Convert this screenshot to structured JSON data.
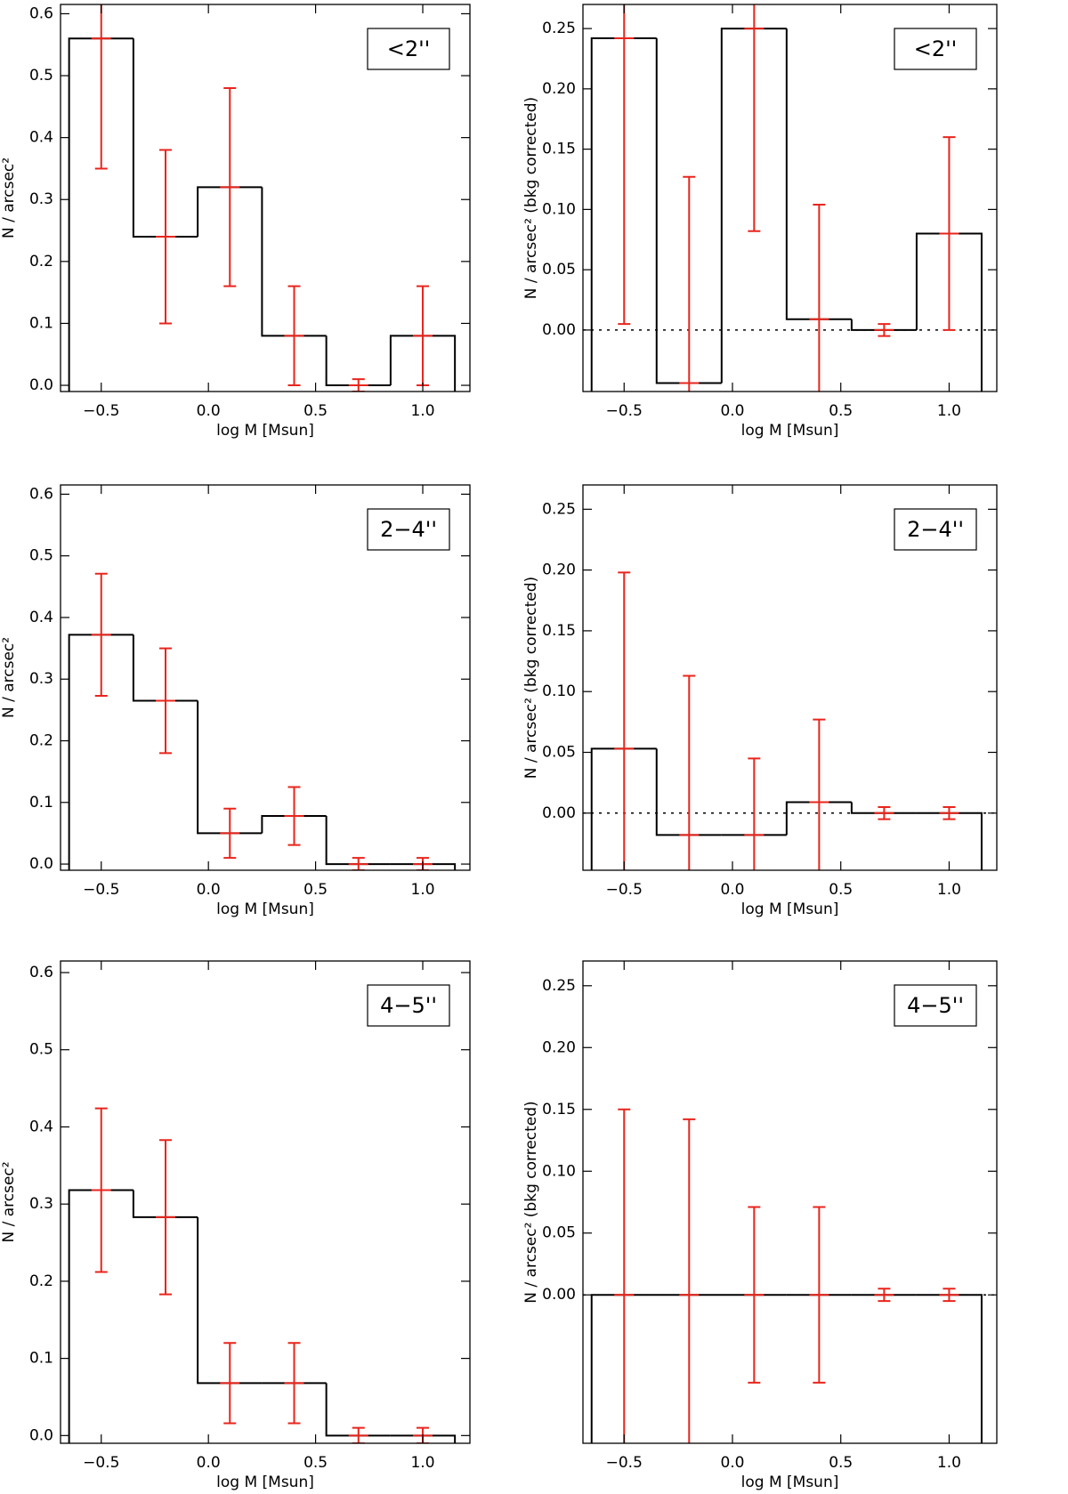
{
  "chart_data": [
    {
      "type": "histogram",
      "bins": [
        -0.65,
        -0.35,
        -0.05,
        0.25,
        0.55,
        0.85,
        1.15
      ],
      "values": [
        0.56,
        0.24,
        0.32,
        0.08,
        0,
        0.08
      ],
      "errors": [
        0.21,
        0.14,
        0.16,
        0.08,
        0.01,
        0.08
      ],
      "color": "#000000",
      "error_color": "#e8251c",
      "legend_label": "<2''",
      "legend": "upper right",
      "xlabel": "log M [Msun]",
      "ylabel": "N / arcsec²",
      "xlim": [
        -0.69,
        1.22
      ],
      "ylim": [
        -0.01,
        0.615
      ],
      "xticks": [
        {
          "value": -0.5,
          "label": "−0.5"
        },
        {
          "value": 0,
          "label": "0.0"
        },
        0.5,
        {
          "value": 1,
          "label": "1.0"
        }
      ],
      "yticks": [
        {
          "value": 0,
          "label": "0.0"
        },
        0.1,
        0.2,
        0.3,
        0.4,
        0.5,
        0.6
      ]
    },
    {
      "type": "histogram",
      "bins": [
        -0.65,
        -0.35,
        -0.05,
        0.25,
        0.55,
        0.85,
        1.15
      ],
      "values": [
        0.242,
        -0.044,
        0.25,
        0.009,
        0,
        0.08
      ],
      "errors": [
        0.237,
        0.171,
        0.168,
        0.095,
        0.005,
        0.08
      ],
      "color": "#000000",
      "error_color": "#e8251c",
      "legend_label": "<2''",
      "legend": "upper right",
      "zero_line": true,
      "xlabel": "log M [Msun]",
      "ylabel": "N / arcsec² (bkg corrected)",
      "xlim": [
        -0.69,
        1.22
      ],
      "ylim": [
        -0.051,
        0.27
      ],
      "xticks": [
        {
          "value": -0.5,
          "label": "−0.5"
        },
        {
          "value": 0,
          "label": "0.0"
        },
        0.5,
        {
          "value": 1,
          "label": "1.0"
        }
      ],
      "yticks": [
        {
          "value": 0,
          "label": "0.00"
        },
        0.05,
        {
          "value": 0.1,
          "label": "0.10"
        },
        0.15,
        {
          "value": 0.2,
          "label": "0.20"
        },
        0.25
      ]
    },
    {
      "type": "histogram",
      "bins": [
        -0.65,
        -0.35,
        -0.05,
        0.25,
        0.55,
        0.85,
        1.15
      ],
      "values": [
        0.372,
        0.265,
        0.05,
        0.078,
        0,
        0
      ],
      "errors": [
        0.099,
        0.085,
        0.04,
        0.047,
        0.01,
        0.01
      ],
      "color": "#000000",
      "error_color": "#e8251c",
      "legend_label": "2−4''",
      "legend": "upper right",
      "xlabel": "log M [Msun]",
      "ylabel": "N / arcsec²",
      "xlim": [
        -0.69,
        1.22
      ],
      "ylim": [
        -0.01,
        0.615
      ],
      "xticks": [
        {
          "value": -0.5,
          "label": "−0.5"
        },
        {
          "value": 0,
          "label": "0.0"
        },
        0.5,
        {
          "value": 1,
          "label": "1.0"
        }
      ],
      "yticks": [
        {
          "value": 0,
          "label": "0.0"
        },
        0.1,
        0.2,
        0.3,
        0.4,
        0.5,
        0.6
      ]
    },
    {
      "type": "histogram",
      "bins": [
        -0.65,
        -0.35,
        -0.05,
        0.25,
        0.55,
        0.85,
        1.15
      ],
      "values": [
        0.053,
        -0.018,
        -0.018,
        0.009,
        0,
        0
      ],
      "errors": [
        0.145,
        0.131,
        0.063,
        0.068,
        0.005,
        0.005
      ],
      "color": "#000000",
      "error_color": "#e8251c",
      "legend_label": "2−4''",
      "legend": "upper right",
      "zero_line": true,
      "xlabel": "log M [Msun]",
      "ylabel": "N / arcsec² (bkg corrected)",
      "xlim": [
        -0.69,
        1.22
      ],
      "ylim": [
        -0.047,
        0.27
      ],
      "xticks": [
        {
          "value": -0.5,
          "label": "−0.5"
        },
        {
          "value": 0,
          "label": "0.0"
        },
        0.5,
        {
          "value": 1,
          "label": "1.0"
        }
      ],
      "yticks": [
        {
          "value": 0,
          "label": "0.00"
        },
        0.05,
        {
          "value": 0.1,
          "label": "0.10"
        },
        0.15,
        {
          "value": 0.2,
          "label": "0.20"
        },
        0.25
      ]
    },
    {
      "type": "histogram",
      "bins": [
        -0.65,
        -0.35,
        -0.05,
        0.25,
        0.55,
        0.85,
        1.15
      ],
      "values": [
        0.318,
        0.283,
        0.068,
        0.068,
        0,
        0
      ],
      "errors": [
        0.106,
        0.1,
        0.052,
        0.052,
        0.01,
        0.01
      ],
      "color": "#000000",
      "error_color": "#e8251c",
      "legend_label": "4−5''",
      "legend": "upper right",
      "xlabel": "log M [Msun]",
      "ylabel": "N / arcsec²",
      "xlim": [
        -0.69,
        1.22
      ],
      "ylim": [
        -0.01,
        0.615
      ],
      "xticks": [
        {
          "value": -0.5,
          "label": "−0.5"
        },
        {
          "value": 0,
          "label": "0.0"
        },
        0.5,
        {
          "value": 1,
          "label": "1.0"
        }
      ],
      "yticks": [
        {
          "value": 0,
          "label": "0.0"
        },
        0.1,
        0.2,
        0.3,
        0.4,
        0.5,
        0.6
      ]
    },
    {
      "type": "histogram",
      "bins": [
        -0.65,
        -0.35,
        -0.05,
        0.25,
        0.55,
        0.85,
        1.15
      ],
      "values": [
        0,
        0,
        0,
        0,
        0,
        0
      ],
      "errors": [
        0.15,
        0.142,
        0.071,
        0.071,
        0.005,
        0.005
      ],
      "color": "#000000",
      "error_color": "#e8251c",
      "legend_label": "4−5''",
      "legend": "upper right",
      "zero_line": true,
      "xlabel": "log M [Msun]",
      "ylabel": "N / arcsec² (bkg corrected)",
      "xlim": [
        -0.69,
        1.22
      ],
      "ylim": [
        -0.12,
        0.27
      ],
      "xticks": [
        {
          "value": -0.5,
          "label": "−0.5"
        },
        {
          "value": 0,
          "label": "0.0"
        },
        0.5,
        {
          "value": 1,
          "label": "1.0"
        }
      ],
      "yticks": [
        {
          "value": 0,
          "label": "0.00"
        },
        0.05,
        {
          "value": 0.1,
          "label": "0.10"
        },
        0.15,
        {
          "value": 0.2,
          "label": "0.20"
        },
        0.25
      ]
    }
  ]
}
